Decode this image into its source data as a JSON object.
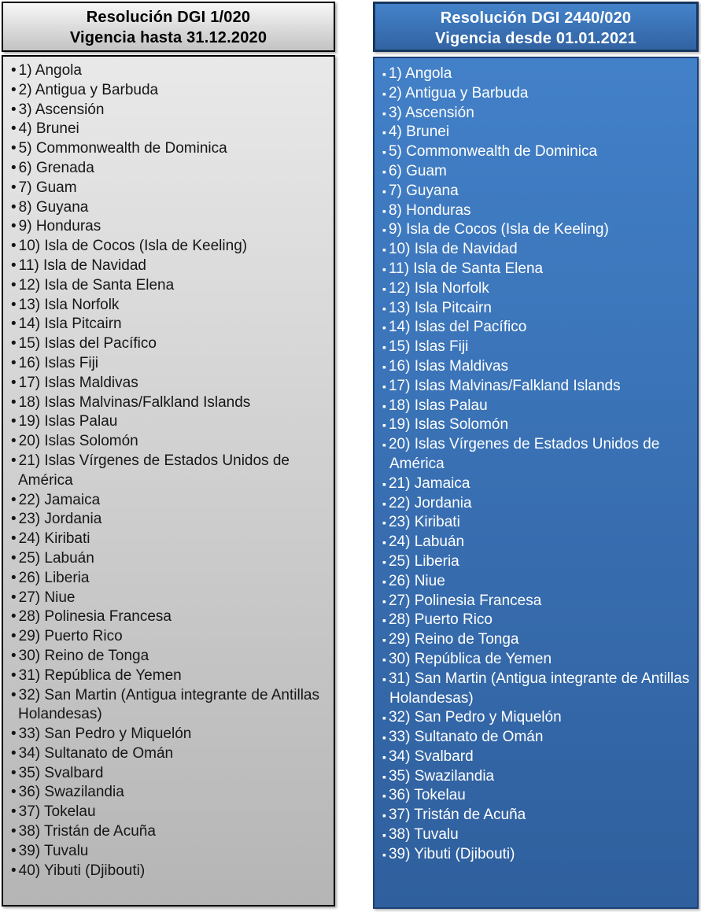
{
  "colors": {
    "gray_panel_header_top": "#f7f7f7",
    "gray_panel_header_bottom": "#c3c3c3",
    "gray_panel_body_top": "#e9e9e9",
    "gray_panel_body_bottom": "#b5b5b5",
    "gray_panel_border": "#000000",
    "gray_panel_text": "#161616",
    "blue_panel_header_top": "#4483ca",
    "blue_panel_header_bottom": "#3263a3",
    "blue_panel_body_top": "#4280c8",
    "blue_panel_body_bottom": "#2f5f9d",
    "blue_panel_border": "#16365d",
    "blue_panel_text": "#ffffff"
  },
  "panels": [
    {
      "id": "resolution-2020",
      "theme": "gray",
      "bullet": "•",
      "header": {
        "title": "Resolución DGI 1/020",
        "subtitle": "Vigencia hasta 31.12.2020"
      },
      "items": [
        "1) Angola",
        "2) Antigua y Barbuda",
        "3) Ascensión",
        "4) Brunei",
        "5) Commonwealth de Dominica",
        "6) Grenada",
        "7) Guam",
        "8) Guyana",
        "9) Honduras",
        "10) Isla de Cocos (Isla de Keeling)",
        "11) Isla de Navidad",
        "12) Isla de Santa Elena",
        "13) Isla Norfolk",
        "14) Isla Pitcairn",
        "15) Islas del Pacífico",
        "16) Islas Fiji",
        "17) Islas Maldivas",
        "18) Islas Malvinas/Falkland Islands",
        "19) Islas Palau",
        "20) Islas Solomón",
        "21) Islas Vírgenes de Estados Unidos de América",
        "22) Jamaica",
        "23) Jordania",
        "24) Kiribati",
        "25) Labuán",
        "26) Liberia",
        "27) Niue",
        "28) Polinesia Francesa",
        "29) Puerto Rico",
        "30) Reino de Tonga",
        "31) República de Yemen",
        "32) San Martin (Antigua integrante de Antillas Holandesas)",
        "33) San Pedro y Miquelón",
        "34) Sultanato de Omán",
        "35) Svalbard",
        "36) Swazilandia",
        "37) Tokelau",
        "38) Tristán de Acuña",
        "39) Tuvalu",
        "40) Yibuti (Djibouti)"
      ]
    },
    {
      "id": "resolution-2021",
      "theme": "blue",
      "bullet": "▪",
      "header": {
        "title": "Resolución DGI 2440/020",
        "subtitle": "Vigencia desde 01.01.2021"
      },
      "items": [
        "1) Angola",
        "2) Antigua y Barbuda",
        "3) Ascensión",
        "4) Brunei",
        "5) Commonwealth de Dominica",
        "6) Guam",
        "7) Guyana",
        "8) Honduras",
        "9) Isla de Cocos (Isla de Keeling)",
        "10) Isla de Navidad",
        "11) Isla de Santa Elena",
        "12) Isla Norfolk",
        "13) Isla Pitcairn",
        "14) Islas del Pacífico",
        "15) Islas Fiji",
        "16) Islas Maldivas",
        "17) Islas Malvinas/Falkland Islands",
        "18) Islas Palau",
        "19) Islas Solomón",
        "20) Islas Vírgenes de Estados Unidos de América",
        "21) Jamaica",
        "22) Jordania",
        "23) Kiribati",
        "24) Labuán",
        "25) Liberia",
        "26) Niue",
        "27) Polinesia Francesa",
        "28) Puerto Rico",
        "29) Reino de Tonga",
        "30) República de Yemen",
        "31) San Martin (Antigua integrante de Antillas Holandesas)",
        "32) San Pedro y Miquelón",
        "33) Sultanato de Omán",
        "34) Svalbard",
        "35) Swazilandia",
        "36) Tokelau",
        "37) Tristán de Acuña",
        "38) Tuvalu",
        "39) Yibuti (Djibouti)"
      ]
    }
  ]
}
